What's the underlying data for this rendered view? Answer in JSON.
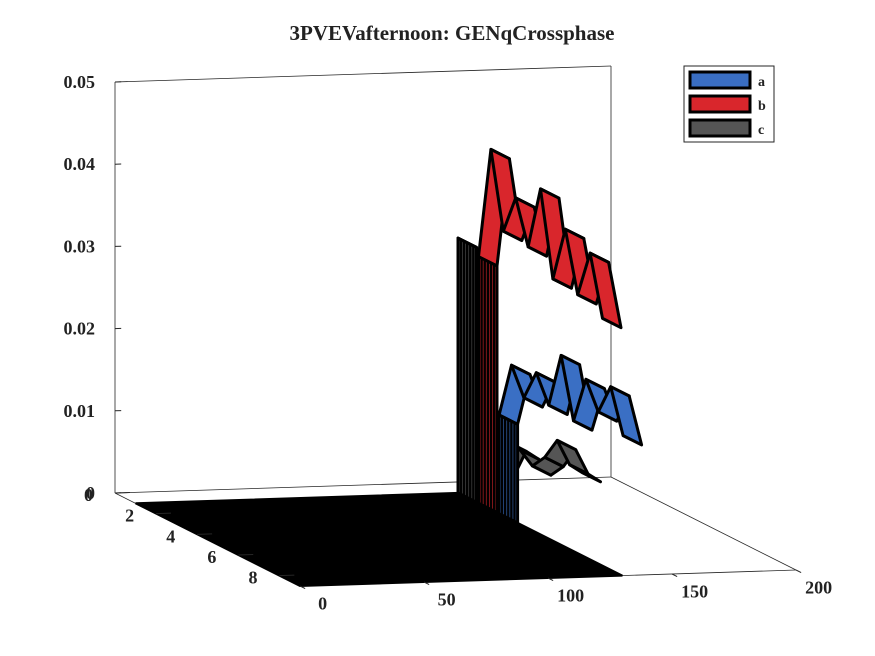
{
  "chart_data": {
    "type": "area",
    "title": "3PVEVafternoon: GENqCrossphase",
    "xlabel": "",
    "ylabel": "",
    "zlabel": "",
    "x_ticks": [
      "0",
      "50",
      "100",
      "150",
      "200"
    ],
    "y_ticks": [
      "0",
      "2",
      "4",
      "6",
      "8"
    ],
    "z_ticks": [
      "0",
      "0.01",
      "0.02",
      "0.03",
      "0.04",
      "0.05"
    ],
    "xlim": [
      0,
      200
    ],
    "ylim": [
      0,
      9
    ],
    "zlim": [
      0,
      0.05
    ],
    "grid": false,
    "legend_position": "top-right",
    "series": [
      {
        "name": "c",
        "color": "#555555",
        "y_position": 1,
        "x": [
          130,
          135,
          140,
          145,
          150,
          155,
          160,
          165,
          170,
          175,
          180
        ],
        "values": [
          0.031,
          0.004,
          0.007,
          0.003,
          0.006,
          0.005,
          0.003,
          0.004,
          0.006,
          0.003,
          0.002
        ]
      },
      {
        "name": "b",
        "color": "#d9262c",
        "y_position": 2,
        "x": [
          130,
          135,
          140,
          145,
          150,
          155,
          160,
          165,
          170,
          175,
          180
        ],
        "values": [
          0.03,
          0.043,
          0.033,
          0.037,
          0.031,
          0.038,
          0.027,
          0.033,
          0.025,
          0.03,
          0.022
        ]
      },
      {
        "name": "a",
        "color": "#3a6fc4",
        "y_position": 3,
        "x": [
          130,
          135,
          140,
          145,
          150,
          155,
          160,
          165,
          170,
          175,
          180
        ],
        "values": [
          0.012,
          0.018,
          0.014,
          0.017,
          0.013,
          0.019,
          0.011,
          0.016,
          0.012,
          0.015,
          0.009
        ]
      }
    ]
  }
}
